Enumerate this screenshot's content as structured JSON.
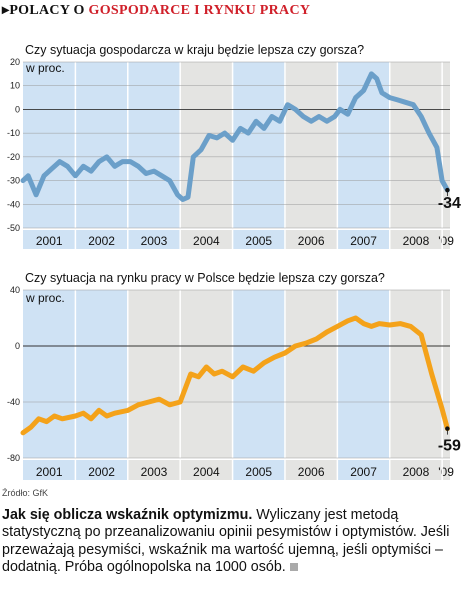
{
  "header": {
    "bullet": "▸",
    "part1": "POLACY O ",
    "part2": "GOSPODARCE I RYNKU PRACY"
  },
  "chart_data": [
    {
      "type": "line",
      "title": "Czy sytuacja gospodarcza w kraju będzie lepsza czy gorsza?",
      "unit_label": "w proc.",
      "color": "#6b9fc9",
      "ylim": [
        -50,
        20
      ],
      "yticks": [
        20,
        10,
        0,
        -10,
        -20,
        -30,
        -40,
        -50
      ],
      "xlim": [
        2001.0,
        2009.15
      ],
      "years": [
        "2001",
        "2002",
        "2003",
        "2004",
        "2005",
        "2006",
        "2007",
        "2008",
        "'09"
      ],
      "shaded_years": [
        "2001",
        "2002",
        "2003",
        "2005",
        "2007"
      ],
      "end_label": "-34",
      "series": [
        {
          "values": [
            [
              2001.0,
              -30
            ],
            [
              2001.1,
              -28
            ],
            [
              2001.25,
              -36
            ],
            [
              2001.4,
              -28
            ],
            [
              2001.55,
              -25
            ],
            [
              2001.7,
              -22
            ],
            [
              2001.85,
              -24
            ],
            [
              2002.0,
              -28
            ],
            [
              2002.15,
              -24
            ],
            [
              2002.3,
              -26
            ],
            [
              2002.45,
              -22
            ],
            [
              2002.6,
              -20
            ],
            [
              2002.75,
              -24
            ],
            [
              2002.9,
              -22
            ],
            [
              2003.05,
              -22
            ],
            [
              2003.2,
              -24
            ],
            [
              2003.35,
              -27
            ],
            [
              2003.5,
              -26
            ],
            [
              2003.65,
              -28
            ],
            [
              2003.8,
              -30
            ],
            [
              2003.95,
              -36
            ],
            [
              2004.05,
              -38
            ],
            [
              2004.15,
              -37
            ],
            [
              2004.25,
              -20
            ],
            [
              2004.4,
              -17
            ],
            [
              2004.55,
              -11
            ],
            [
              2004.7,
              -12
            ],
            [
              2004.85,
              -10
            ],
            [
              2005.0,
              -13
            ],
            [
              2005.15,
              -8
            ],
            [
              2005.3,
              -10
            ],
            [
              2005.45,
              -5
            ],
            [
              2005.6,
              -8
            ],
            [
              2005.75,
              -3
            ],
            [
              2005.9,
              -5
            ],
            [
              2006.05,
              2
            ],
            [
              2006.2,
              0
            ],
            [
              2006.35,
              -3
            ],
            [
              2006.5,
              -5
            ],
            [
              2006.65,
              -3
            ],
            [
              2006.8,
              -5
            ],
            [
              2006.95,
              -3
            ],
            [
              2007.05,
              0
            ],
            [
              2007.2,
              -2
            ],
            [
              2007.35,
              5
            ],
            [
              2007.5,
              8
            ],
            [
              2007.65,
              15
            ],
            [
              2007.75,
              13
            ],
            [
              2007.85,
              7
            ],
            [
              2008.0,
              5
            ],
            [
              2008.15,
              4
            ],
            [
              2008.3,
              3
            ],
            [
              2008.45,
              2
            ],
            [
              2008.6,
              -3
            ],
            [
              2008.75,
              -10
            ],
            [
              2008.9,
              -16
            ],
            [
              2009.0,
              -30
            ],
            [
              2009.1,
              -34
            ]
          ]
        }
      ]
    },
    {
      "type": "line",
      "title": "Czy sytuacja na rynku pracy w Polsce będzie lepsza czy gorsza?",
      "unit_label": "w proc.",
      "color": "#f4a21a",
      "ylim": [
        -80,
        40
      ],
      "yticks": [
        40,
        0,
        -40,
        -80
      ],
      "xlim": [
        2001.0,
        2009.15
      ],
      "years": [
        "2001",
        "2002",
        "2003",
        "2004",
        "2005",
        "2006",
        "2007",
        "2008",
        "'09"
      ],
      "shaded_years": [
        "2001",
        "2002",
        "2005",
        "2007"
      ],
      "end_label": "-59",
      "series": [
        {
          "values": [
            [
              2001.0,
              -62
            ],
            [
              2001.15,
              -58
            ],
            [
              2001.3,
              -52
            ],
            [
              2001.45,
              -54
            ],
            [
              2001.6,
              -50
            ],
            [
              2001.75,
              -52
            ],
            [
              2002.0,
              -50
            ],
            [
              2002.15,
              -48
            ],
            [
              2002.3,
              -52
            ],
            [
              2002.45,
              -46
            ],
            [
              2002.6,
              -50
            ],
            [
              2002.75,
              -48
            ],
            [
              2003.0,
              -46
            ],
            [
              2003.2,
              -42
            ],
            [
              2003.4,
              -40
            ],
            [
              2003.6,
              -38
            ],
            [
              2003.8,
              -42
            ],
            [
              2004.0,
              -40
            ],
            [
              2004.2,
              -20
            ],
            [
              2004.35,
              -22
            ],
            [
              2004.5,
              -15
            ],
            [
              2004.65,
              -20
            ],
            [
              2004.8,
              -18
            ],
            [
              2005.0,
              -22
            ],
            [
              2005.2,
              -15
            ],
            [
              2005.4,
              -18
            ],
            [
              2005.6,
              -12
            ],
            [
              2005.8,
              -8
            ],
            [
              2006.0,
              -5
            ],
            [
              2006.2,
              0
            ],
            [
              2006.4,
              2
            ],
            [
              2006.6,
              5
            ],
            [
              2006.8,
              10
            ],
            [
              2007.0,
              14
            ],
            [
              2007.2,
              18
            ],
            [
              2007.35,
              20
            ],
            [
              2007.5,
              16
            ],
            [
              2007.65,
              14
            ],
            [
              2007.8,
              16
            ],
            [
              2008.0,
              15
            ],
            [
              2008.2,
              16
            ],
            [
              2008.4,
              14
            ],
            [
              2008.6,
              8
            ],
            [
              2008.8,
              -20
            ],
            [
              2009.0,
              -45
            ],
            [
              2009.1,
              -59
            ]
          ]
        }
      ]
    }
  ],
  "source": "Źródło: GfK",
  "footnote": {
    "bold": "Jak się oblicza wskaźnik optymizmu.",
    "text": " Wyliczany jest metodą statystyczną po przeanalizowaniu opinii pesymistów i optymistów. Jeśli przeważają pesymiści, wskaźnik ma wartość ujemną, jeśli optymiści – dodatnią. Próba ogólnopolska na 1000 osób."
  }
}
